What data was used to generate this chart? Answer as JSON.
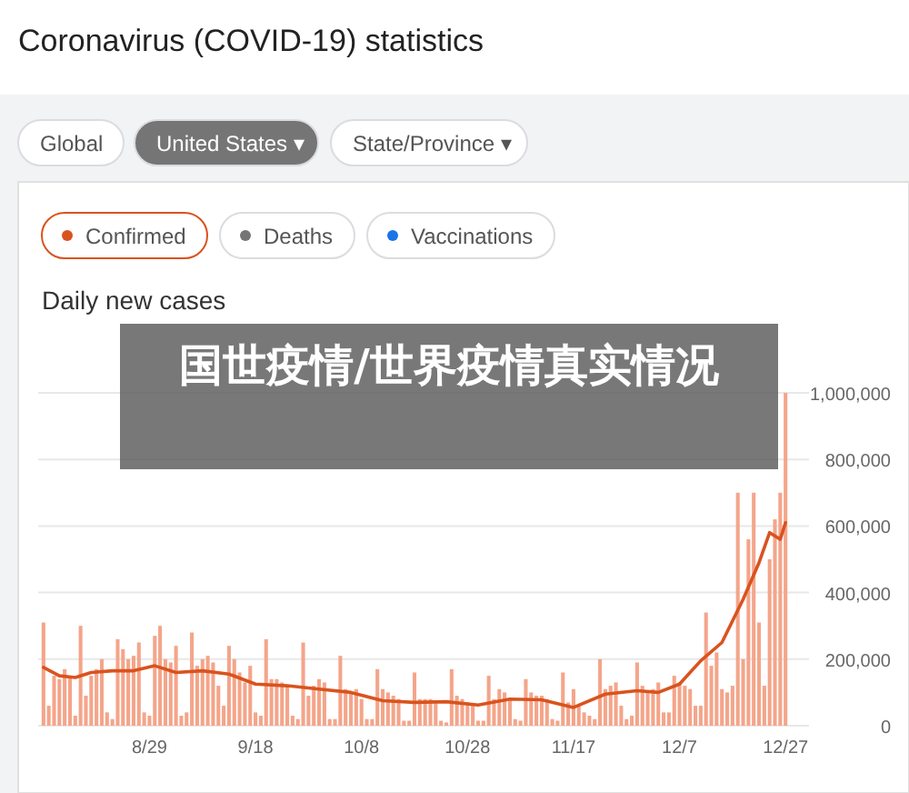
{
  "chart_data": {
    "type": "bar",
    "title": "Coronavirus (COVID-19) statistics",
    "subtitle": "Daily new cases",
    "annotations": [
      "Global",
      "United States ▾",
      "State/Province ▾",
      "Confirmed",
      "Deaths",
      "Vaccinations",
      "国世疫情/世界疫情真实情况"
    ],
    "x": [
      "--08-09",
      "--08-10",
      "--08-11",
      "--08-12",
      "--08-13",
      "--08-14",
      "--08-15",
      "--08-16",
      "--08-17",
      "--08-18",
      "--08-19",
      "--08-20",
      "--08-21",
      "--08-22",
      "--08-23",
      "--08-24",
      "--08-25",
      "--08-26",
      "--08-27",
      "--08-28",
      "--08-29",
      "--08-30",
      "--08-31",
      "--09-01",
      "--09-02",
      "--09-03",
      "--09-04",
      "--09-05",
      "--09-06",
      "--09-07",
      "--09-08",
      "--09-09",
      "--09-10",
      "--09-11",
      "--09-12",
      "--09-13",
      "--09-14",
      "--09-15",
      "--09-16",
      "--09-17",
      "--09-18",
      "--09-19",
      "--09-20",
      "--09-21",
      "--09-22",
      "--09-23",
      "--09-24",
      "--09-25",
      "--09-26",
      "--09-27",
      "--09-28",
      "--09-29",
      "--09-30",
      "--10-01",
      "--10-02",
      "--10-03",
      "--10-04",
      "--10-05",
      "--10-06",
      "--10-07",
      "--10-08",
      "--10-09",
      "--10-10",
      "--10-11",
      "--10-12",
      "--10-13",
      "--10-14",
      "--10-15",
      "--10-16",
      "--10-17",
      "--10-18",
      "--10-19",
      "--10-20",
      "--10-21",
      "--10-22",
      "--10-23",
      "--10-24",
      "--10-25",
      "--10-26",
      "--10-27",
      "--10-28",
      "--10-29",
      "--10-30",
      "--10-31",
      "--11-01",
      "--11-02",
      "--11-03",
      "--11-04",
      "--11-05",
      "--11-06",
      "--11-07",
      "--11-08",
      "--11-09",
      "--11-10",
      "--11-11",
      "--11-12",
      "--11-13",
      "--11-14",
      "--11-15",
      "--11-16",
      "--11-17",
      "--11-18",
      "--11-19",
      "--11-20",
      "--11-21",
      "--11-22",
      "--11-23",
      "--11-24",
      "--11-25",
      "--11-26",
      "--11-27",
      "--11-28",
      "--11-29",
      "--11-30",
      "--12-01",
      "--12-02",
      "--12-03",
      "--12-04",
      "--12-05",
      "--12-06",
      "--12-07",
      "--12-08",
      "--12-09",
      "--12-10",
      "--12-11",
      "--12-12",
      "--12-13",
      "--12-14",
      "--12-15",
      "--12-16",
      "--12-17",
      "--12-18",
      "--12-19",
      "--12-20",
      "--12-21",
      "--12-22",
      "--12-23",
      "--12-24",
      "--12-25",
      "--12-26",
      "--12-27"
    ],
    "series": [
      {
        "color": "#f4a58a",
        "values": [
          310000,
          60000,
          150000,
          140000,
          170000,
          150000,
          30000,
          300000,
          90000,
          150000,
          170000,
          200000,
          40000,
          20000,
          260000,
          230000,
          200000,
          210000,
          250000,
          40000,
          30000,
          270000,
          300000,
          200000,
          190000,
          240000,
          30000,
          40000,
          280000,
          180000,
          200000,
          210000,
          190000,
          120000,
          60000,
          240000,
          200000,
          160000,
          130000,
          180000,
          40000,
          30000,
          260000,
          140000,
          140000,
          130000,
          120000,
          30000,
          20000,
          250000,
          90000,
          120000,
          140000,
          130000,
          20000,
          20000,
          210000,
          110000,
          100000,
          110000,
          80000,
          20000,
          20000,
          170000,
          110000,
          100000,
          90000,
          80000,
          15000,
          15000,
          160000,
          80000,
          80000,
          80000,
          70000,
          15000,
          10000,
          170000,
          90000,
          80000,
          70000,
          60000,
          15000,
          15000,
          150000,
          80000,
          110000,
          100000,
          80000,
          20000,
          15000,
          140000,
          100000,
          90000,
          90000,
          80000,
          20000,
          15000,
          160000,
          70000,
          110000,
          60000,
          40000,
          30000,
          20000,
          200000,
          110000,
          120000,
          130000,
          60000,
          20000,
          30000,
          190000,
          120000,
          100000,
          110000,
          130000,
          40000,
          40000,
          150000,
          130000,
          120000,
          110000,
          60000,
          60000,
          340000,
          180000,
          220000,
          110000,
          100000,
          120000,
          700000,
          200000,
          560000,
          700000,
          310000,
          120000,
          500000,
          620000,
          700000,
          1000000
        ]
      },
      {
        "type": "line",
        "color": "#d9531e",
        "x": [
          "--08-09",
          "--08-12",
          "--08-15",
          "--08-18",
          "--08-22",
          "--08-26",
          "--08-30",
          "--09-03",
          "--09-08",
          "--09-13",
          "--09-18",
          "--09-24",
          "--09-30",
          "--10-06",
          "--10-12",
          "--10-18",
          "--10-24",
          "--10-30",
          "--11-05",
          "--11-11",
          "--11-17",
          "--11-23",
          "--11-29",
          "--12-03",
          "--12-07",
          "--12-11",
          "--12-15",
          "--12-19",
          "--12-22",
          "--12-24",
          "--12-26",
          "--12-27"
        ],
        "values": [
          175000,
          150000,
          145000,
          160000,
          165000,
          165000,
          180000,
          160000,
          165000,
          155000,
          125000,
          120000,
          110000,
          100000,
          75000,
          70000,
          72000,
          62000,
          80000,
          78000,
          55000,
          95000,
          105000,
          100000,
          125000,
          195000,
          250000,
          380000,
          490000,
          580000,
          560000,
          610000
        ]
      }
    ],
    "xlim": [
      "--08-08",
      "--12-28"
    ],
    "xticks": [
      {
        "value": "--08-29",
        "label": "8/29"
      },
      {
        "value": "--09-18",
        "label": "9/18"
      },
      {
        "value": "--10-08",
        "label": "10/8"
      },
      {
        "value": "--10-28",
        "label": "10/28"
      },
      {
        "value": "--11-17",
        "label": "11/17"
      },
      {
        "value": "--12-07",
        "label": "12/7"
      },
      {
        "value": "--12-27",
        "label": "12/27"
      }
    ],
    "ylim": [
      0,
      1000000
    ],
    "yticks": [
      0,
      {
        "value": 200000,
        "label": "200,000"
      },
      {
        "value": 400000,
        "label": "400,000"
      },
      {
        "value": 600000,
        "label": "600,000"
      },
      {
        "value": 800000,
        "label": "800,000"
      },
      {
        "value": 1000000,
        "label": "1,000,000"
      }
    ],
    "grid": "y"
  }
}
